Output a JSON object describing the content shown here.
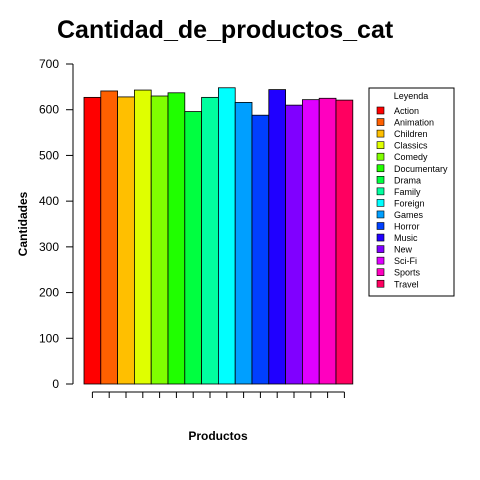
{
  "chart_data": {
    "type": "bar",
    "title": "Cantidad_de_productos_cat",
    "xlabel": "Productos",
    "ylabel": "Cantidades",
    "ylim": [
      0,
      700
    ],
    "yticks": [
      "0",
      "100",
      "200",
      "300",
      "400",
      "500",
      "600",
      "700"
    ],
    "categories": [
      "Action",
      "Animation",
      "Children",
      "Classics",
      "Comedy",
      "Documentary",
      "Drama",
      "Family",
      "Foreign",
      "Games",
      "Horror",
      "Music",
      "New",
      "Sci-Fi",
      "Sports",
      "Travel"
    ],
    "values": [
      627,
      641,
      628,
      643,
      630,
      637,
      596,
      627,
      648,
      616,
      588,
      644,
      610,
      622,
      625,
      621
    ],
    "colors": [
      "#FF0000",
      "#FF6000",
      "#FFBF00",
      "#DFFF00",
      "#80FF00",
      "#20FF00",
      "#00FF40",
      "#00FF9F",
      "#00FFFF",
      "#009FFF",
      "#0040FF",
      "#2000FF",
      "#8000FF",
      "#DF00FF",
      "#FF00BF",
      "#FF0060"
    ],
    "grid": false,
    "legend": {
      "title": "Leyenda",
      "placement": "right"
    }
  }
}
